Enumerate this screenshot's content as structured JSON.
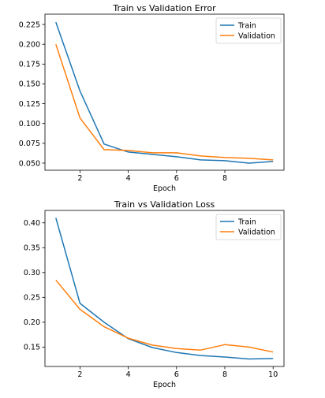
{
  "chart_data": [
    {
      "type": "line",
      "title": "Train vs Validation Error",
      "xlabel": "Epoch",
      "ylabel": "",
      "x": [
        1,
        2,
        3,
        4,
        5,
        6,
        7,
        8,
        9,
        10
      ],
      "xticks": [
        2,
        4,
        6,
        8
      ],
      "xlim": [
        0.55,
        10.45
      ],
      "yticks": [
        0.05,
        0.075,
        0.1,
        0.125,
        0.15,
        0.175,
        0.2,
        0.225
      ],
      "ytick_labels": [
        "0.050",
        "0.075",
        "0.100",
        "0.125",
        "0.150",
        "0.175",
        "0.200",
        "0.225"
      ],
      "ylim": [
        0.041,
        0.238
      ],
      "legend_position": "top-right",
      "grid": false,
      "series": [
        {
          "name": "Train",
          "color": "#1f77b4",
          "values": [
            0.228,
            0.141,
            0.074,
            0.064,
            0.061,
            0.058,
            0.054,
            0.053,
            0.05,
            0.052
          ]
        },
        {
          "name": "Validation",
          "color": "#ff7f0e",
          "values": [
            0.2,
            0.107,
            0.067,
            0.066,
            0.063,
            0.063,
            0.059,
            0.057,
            0.056,
            0.054
          ]
        }
      ]
    },
    {
      "type": "line",
      "title": "Train vs Validation Loss",
      "xlabel": "Epoch",
      "ylabel": "",
      "x": [
        1,
        2,
        3,
        4,
        5,
        6,
        7,
        8,
        9,
        10
      ],
      "xticks": [
        2,
        4,
        6,
        8,
        10
      ],
      "xlim": [
        0.55,
        10.45
      ],
      "yticks": [
        0.15,
        0.2,
        0.25,
        0.3,
        0.35,
        0.4
      ],
      "ytick_labels": [
        "0.15",
        "0.20",
        "0.25",
        "0.30",
        "0.35",
        "0.40"
      ],
      "ylim": [
        0.111,
        0.425
      ],
      "legend_position": "top-right",
      "grid": false,
      "series": [
        {
          "name": "Train",
          "color": "#1f77b4",
          "values": [
            0.41,
            0.238,
            0.2,
            0.167,
            0.149,
            0.139,
            0.133,
            0.13,
            0.126,
            0.127
          ]
        },
        {
          "name": "Validation",
          "color": "#ff7f0e",
          "values": [
            0.285,
            0.226,
            0.191,
            0.168,
            0.154,
            0.147,
            0.144,
            0.155,
            0.15,
            0.14
          ]
        }
      ]
    }
  ]
}
